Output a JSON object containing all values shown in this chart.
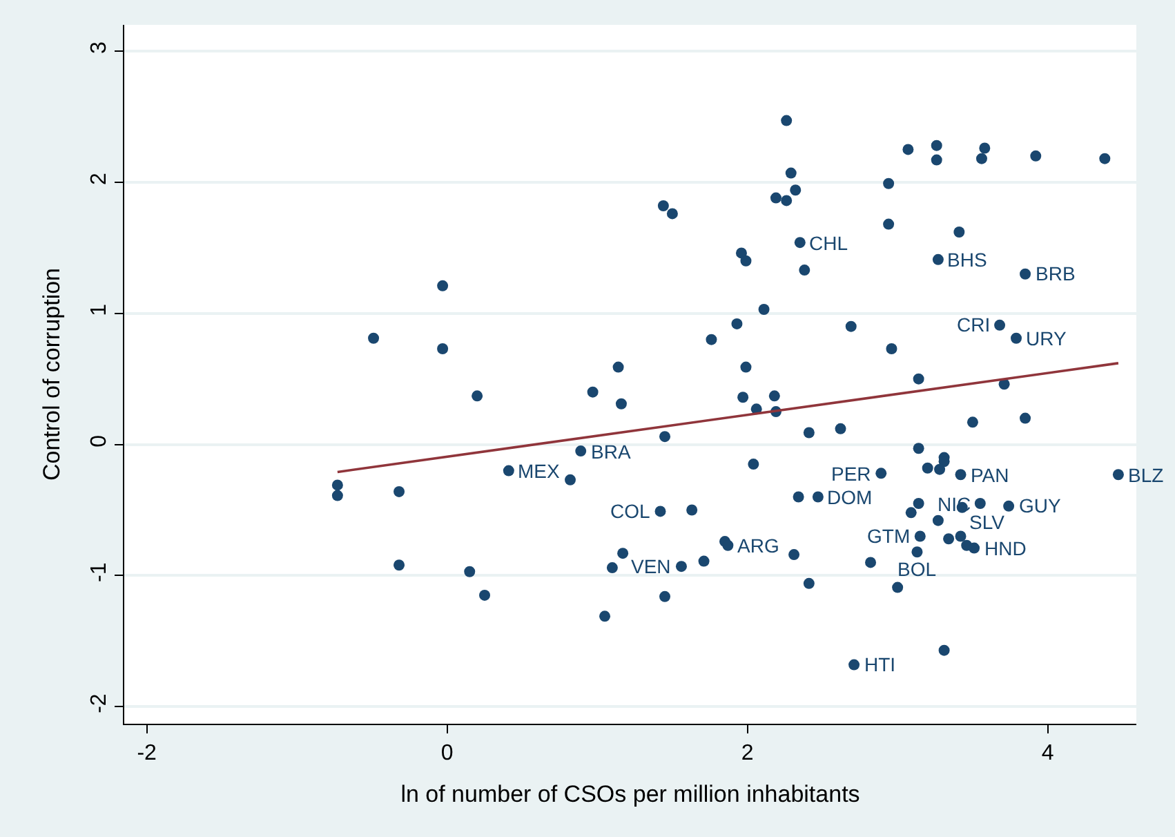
{
  "chart_data": {
    "type": "scatter",
    "xlabel": "ln of number of CSOs per million inhabitants",
    "ylabel": "Control of corruption",
    "xlim": [
      -2.15,
      4.59
    ],
    "ylim": [
      -2.13,
      3.2
    ],
    "xticks": [
      -2,
      0,
      2,
      4
    ],
    "yticks": [
      -2,
      -1,
      0,
      1,
      2,
      3
    ],
    "grid": "y",
    "marker": "circle",
    "series": [
      {
        "color": "#1a476f",
        "x": [
          -0.73,
          -0.73,
          -0.49,
          -0.32,
          -0.32,
          -0.03,
          -0.03,
          0.15,
          0.2,
          0.25,
          0.41,
          0.82,
          0.89,
          0.97,
          1.05,
          1.1,
          1.14,
          1.16,
          1.17,
          1.44,
          1.5,
          1.45,
          1.45,
          1.42,
          1.63,
          1.85,
          1.87,
          1.56,
          1.71,
          1.76,
          2.26,
          3.07,
          3.26,
          3.26,
          3.58,
          3.56,
          3.92,
          4.38,
          2.29,
          2.94,
          2.32,
          2.19,
          2.26,
          2.94,
          3.41,
          2.35,
          3.27,
          1.96,
          1.99,
          2.38,
          3.85,
          2.11,
          1.93,
          2.69,
          3.68,
          3.79,
          2.96,
          1.99,
          3.14,
          3.71,
          1.97,
          2.18,
          2.06,
          2.19,
          2.41,
          2.62,
          3.5,
          3.85,
          3.14,
          2.04,
          3.31,
          3.31,
          3.2,
          3.28,
          2.89,
          3.42,
          4.47,
          2.34,
          2.47,
          3.14,
          3.09,
          3.43,
          3.55,
          3.74,
          3.27,
          3.15,
          3.34,
          3.42,
          3.46,
          3.51,
          3.13,
          2.31,
          2.82,
          2.41,
          3.0,
          3.31,
          2.71
        ],
        "values": [
          -0.31,
          -0.39,
          0.81,
          -0.36,
          -0.92,
          1.21,
          0.73,
          -0.97,
          0.37,
          -1.15,
          -0.2,
          -0.27,
          -0.05,
          0.4,
          -1.31,
          -0.94,
          0.59,
          0.31,
          -0.83,
          1.82,
          1.76,
          0.06,
          -1.16,
          -0.51,
          -0.5,
          -0.74,
          -0.77,
          -0.93,
          -0.89,
          0.8,
          2.47,
          2.25,
          2.28,
          2.17,
          2.26,
          2.18,
          2.2,
          2.18,
          2.07,
          1.99,
          1.94,
          1.88,
          1.86,
          1.68,
          1.62,
          1.54,
          1.41,
          1.46,
          1.4,
          1.33,
          1.3,
          1.03,
          0.92,
          0.9,
          0.91,
          0.81,
          0.73,
          0.59,
          0.5,
          0.46,
          0.36,
          0.37,
          0.27,
          0.25,
          0.09,
          0.12,
          0.17,
          0.2,
          -0.03,
          -0.15,
          -0.1,
          -0.13,
          -0.18,
          -0.19,
          -0.22,
          -0.23,
          -0.23,
          -0.4,
          -0.4,
          -0.45,
          -0.52,
          -0.48,
          -0.45,
          -0.47,
          -0.58,
          -0.7,
          -0.72,
          -0.7,
          -0.77,
          -0.79,
          -0.82,
          -0.84,
          -0.9,
          -1.06,
          -1.09,
          -1.57,
          -1.68
        ]
      },
      {
        "type": "line",
        "color": "#90353b",
        "marker": "none",
        "x": [
          -0.73,
          4.47
        ],
        "values": [
          -0.21,
          0.62
        ]
      }
    ],
    "annotations": [
      {
        "text": "MEX",
        "x": 0.41,
        "y": -0.2
      },
      {
        "text": "BRA",
        "x": 0.89,
        "y": -0.05
      },
      {
        "text": "COL",
        "x": 1.42,
        "y": -0.51
      },
      {
        "text": "VEN",
        "x": 1.56,
        "y": -0.93
      },
      {
        "text": "ARG",
        "x": 1.87,
        "y": -0.77
      },
      {
        "text": "CHL",
        "x": 2.35,
        "y": 1.54
      },
      {
        "text": "BHS",
        "x": 3.27,
        "y": 1.41
      },
      {
        "text": "BRB",
        "x": 3.85,
        "y": 1.3
      },
      {
        "text": "CRI",
        "x": 3.68,
        "y": 0.91
      },
      {
        "text": "URY",
        "x": 3.79,
        "y": 0.81
      },
      {
        "text": "PER",
        "x": 2.89,
        "y": -0.22
      },
      {
        "text": "PAN",
        "x": 3.42,
        "y": -0.23
      },
      {
        "text": "BLZ",
        "x": 4.47,
        "y": -0.23
      },
      {
        "text": "DOM",
        "x": 2.47,
        "y": -0.4
      },
      {
        "text": "SLV",
        "x": 3.43,
        "y": -0.48
      },
      {
        "text": "NIC",
        "x": 3.55,
        "y": -0.45
      },
      {
        "text": "GUY",
        "x": 3.74,
        "y": -0.47
      },
      {
        "text": "GTM",
        "x": 3.15,
        "y": -0.7
      },
      {
        "text": "HND",
        "x": 3.51,
        "y": -0.79
      },
      {
        "text": "BOL",
        "x": 3.13,
        "y": -0.82
      },
      {
        "text": "HTI",
        "x": 2.71,
        "y": -1.68
      }
    ]
  }
}
